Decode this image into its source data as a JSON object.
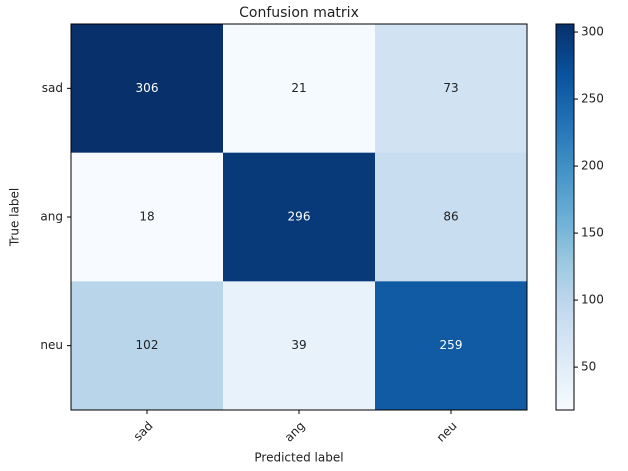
{
  "chart_data": {
    "type": "heatmap",
    "title": "Confusion matrix",
    "x_label": "Predicted label",
    "y_label": "True label",
    "x_categories": [
      "sad",
      "ang",
      "neu"
    ],
    "y_categories": [
      "sad",
      "ang",
      "neu"
    ],
    "z": [
      [
        306,
        21,
        73
      ],
      [
        18,
        296,
        86
      ],
      [
        102,
        39,
        259
      ]
    ],
    "colormap": "Blues",
    "clim": [
      18,
      306
    ],
    "cticks": [
      50,
      100,
      150,
      200,
      250,
      300
    ]
  }
}
